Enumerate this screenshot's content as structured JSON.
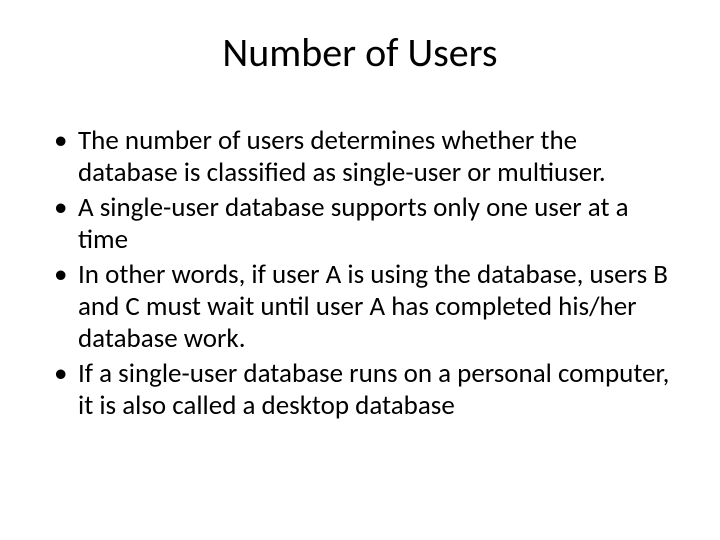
{
  "slide": {
    "title": "Number of Users",
    "title_fontsize": 40,
    "title_color": "#000000",
    "title_align": "center",
    "bullets": [
      "The number of users determines whether the database is classified as single-user or multiuser.",
      "A single-user database supports only one user at a time",
      "In other words, if user A is using the database, users B and C must wait until user A has completed his/her database work.",
      "If a single-user database runs on a personal computer, it is also called a desktop database"
    ],
    "bullet_fontsize": 27,
    "bullet_color": "#000000",
    "bullet_marker": "•",
    "background_color": "#ffffff",
    "font_family": "Calibri"
  }
}
